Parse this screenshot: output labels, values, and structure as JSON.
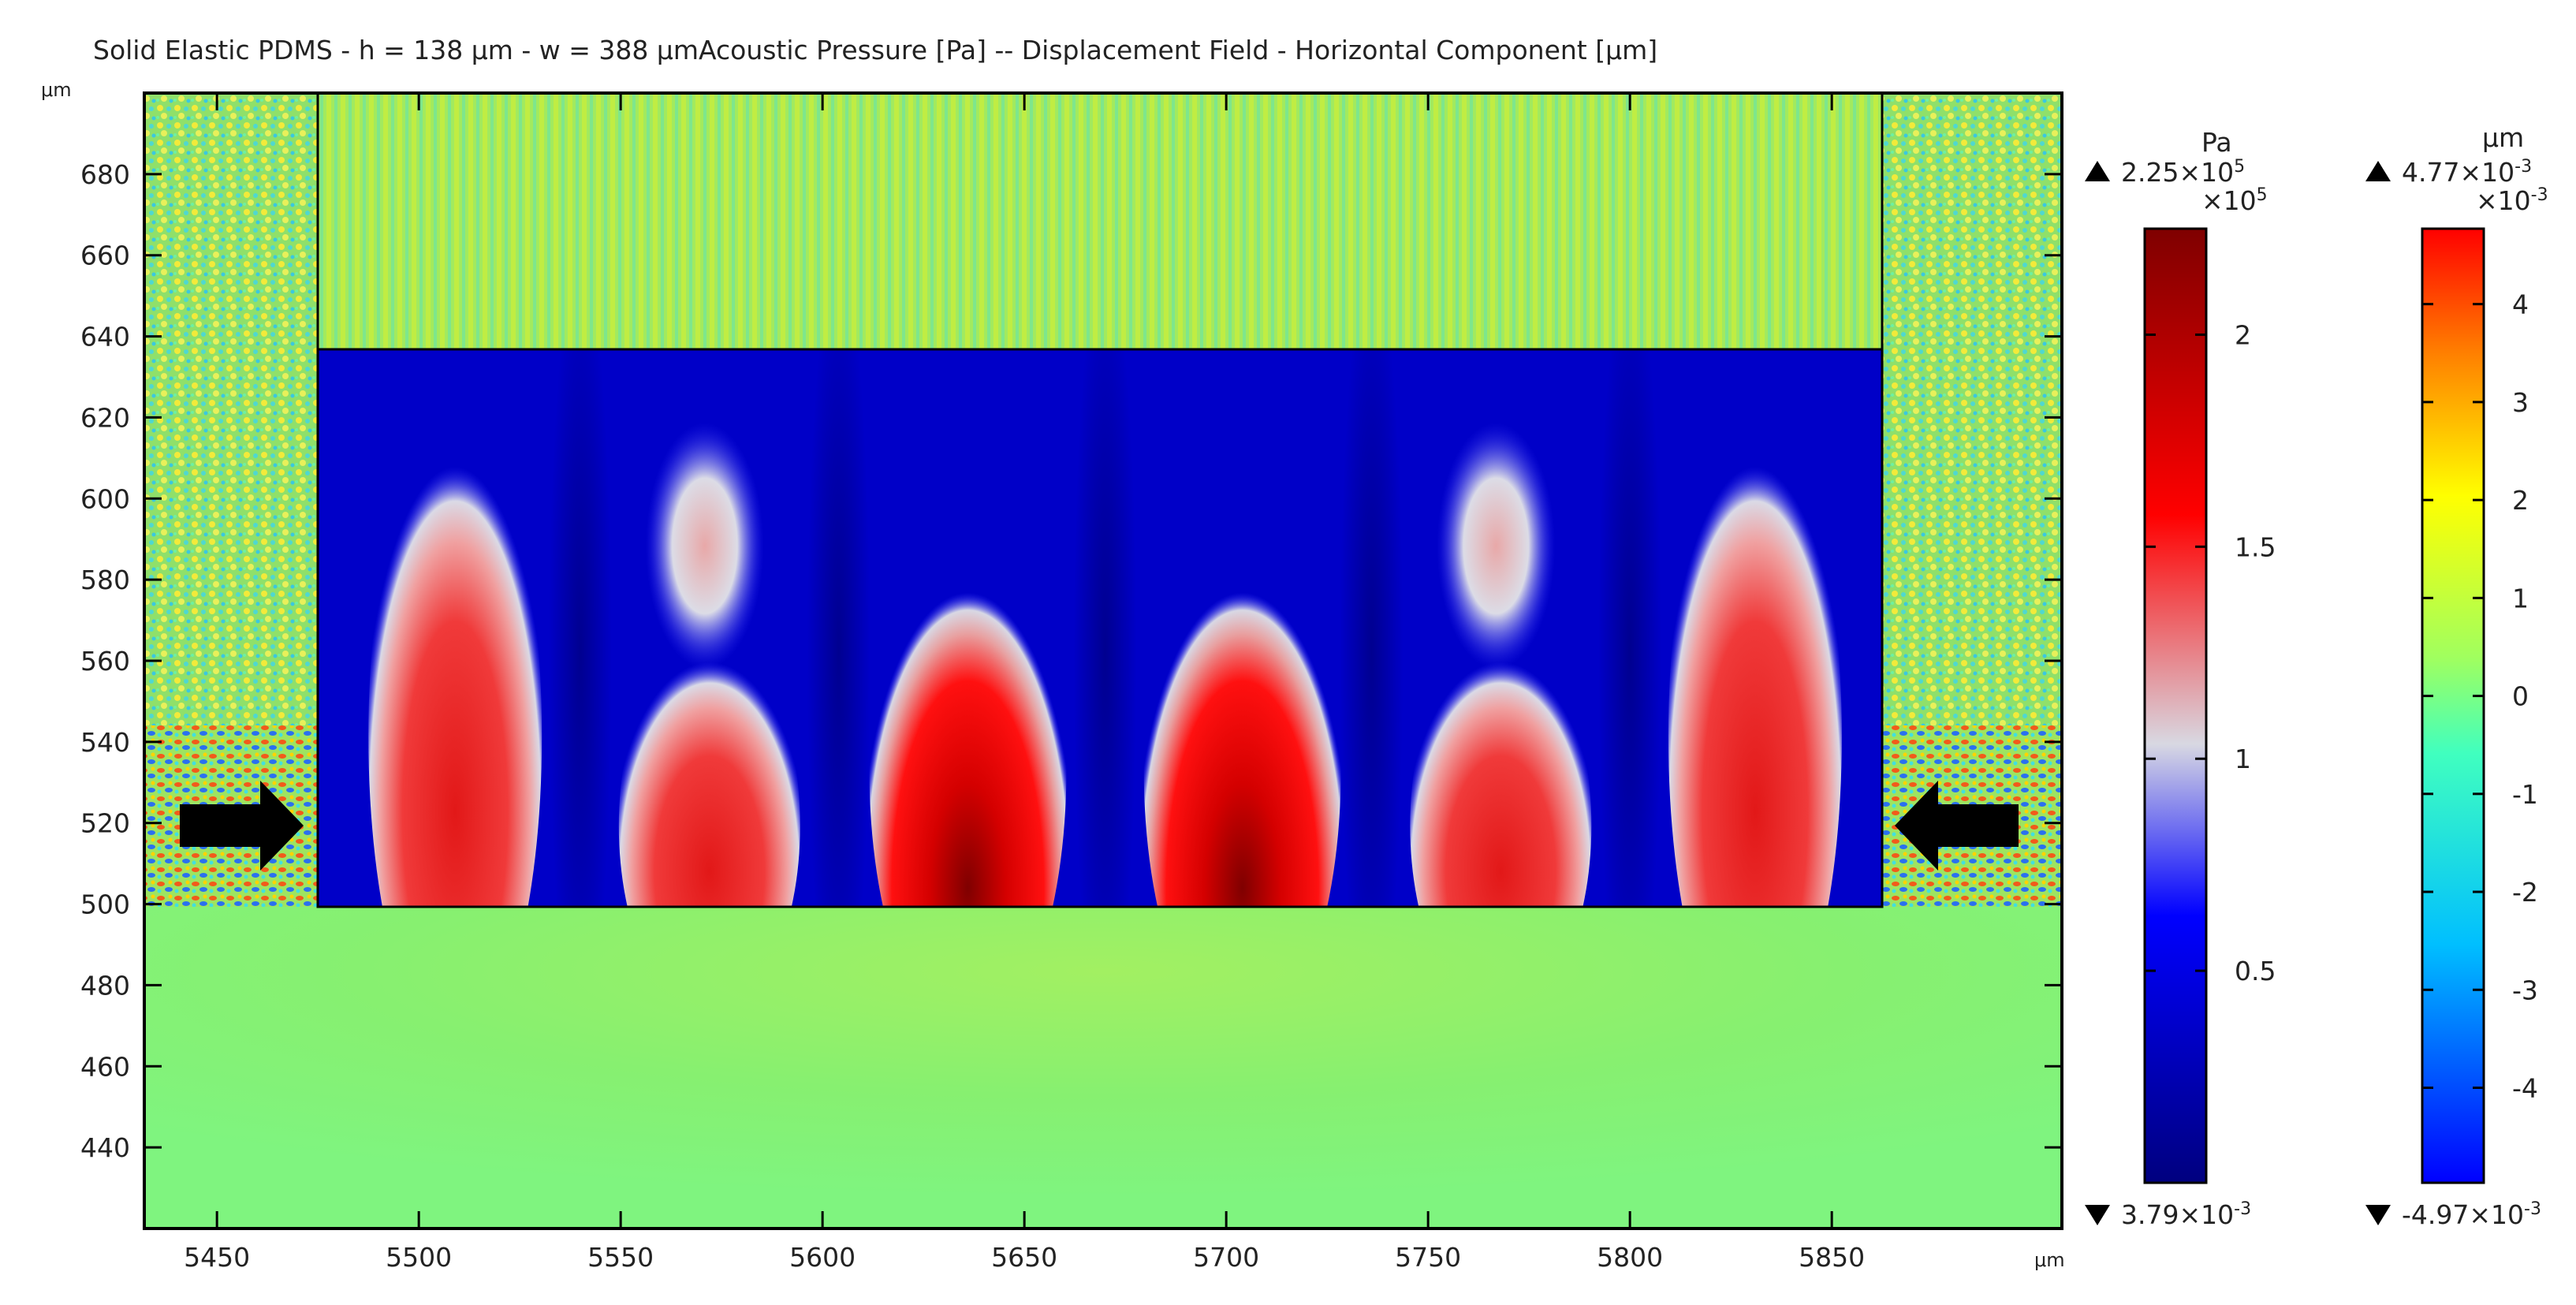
{
  "title": "Solid Elastic PDMS - h = 138 μm - w = 388 μmAcoustic Pressure [Pa] -- Displacement Field - Horizontal Component [μm]",
  "chart_data": {
    "type": "heatmap",
    "title": "Solid Elastic PDMS - h = 138 μm - w = 388 μmAcoustic Pressure [Pa] -- Displacement Field - Horizontal Component [μm]",
    "x_unit": "μm",
    "y_unit": "μm",
    "xlim": [
      5432,
      5907
    ],
    "ylim": [
      420,
      700
    ],
    "x_ticks": [
      5450,
      5500,
      5550,
      5600,
      5650,
      5700,
      5750,
      5800,
      5850
    ],
    "y_ticks": [
      440,
      460,
      480,
      500,
      520,
      540,
      560,
      580,
      600,
      620,
      640,
      660,
      680
    ],
    "channel": {
      "x_left": 5476,
      "x_right": 5864,
      "y_bottom": 500,
      "y_top": 638
    },
    "pressure_lobes": [
      {
        "x": 5509,
        "y_peak": 540,
        "relative": 0.62
      },
      {
        "x": 5572,
        "y_peak": 520,
        "relative": 0.75
      },
      {
        "x": 5636,
        "y_peak": 520,
        "relative": 1.0
      },
      {
        "x": 5704,
        "y_peak": 520,
        "relative": 1.0
      },
      {
        "x": 5768,
        "y_peak": 520,
        "relative": 0.75
      },
      {
        "x": 5831,
        "y_peak": 540,
        "relative": 0.62
      }
    ],
    "arrows": [
      {
        "direction": "right",
        "x": 5465,
        "y": 519
      },
      {
        "direction": "left",
        "x": 5876,
        "y": 519
      }
    ],
    "colorbars": [
      {
        "name": "Acoustic Pressure",
        "unit": "Pa",
        "max_label": "2.25×10",
        "max_exp": "5",
        "min_label": "3.79×10",
        "min_exp": "-3",
        "multiplier": "×10",
        "multiplier_exp": "5",
        "max": 2.25,
        "min": 0.0,
        "ticks": [
          "2",
          "1.5",
          "1",
          "0.5"
        ],
        "tick_values": [
          2,
          1.5,
          1,
          0.5
        ],
        "colormap": [
          "#00007f",
          "#0000ff",
          "#c8c8dc",
          "#ff0000",
          "#7f0000"
        ]
      },
      {
        "name": "Displacement Field - Horizontal Component",
        "unit": "μm",
        "max_label": "4.77×10",
        "max_exp": "-3",
        "min_label": "-4.97×10",
        "min_exp": "-3",
        "multiplier": "×10",
        "multiplier_exp": "-3",
        "max": 4.77,
        "min": -4.97,
        "ticks": [
          "4",
          "3",
          "2",
          "1",
          "0",
          "-1",
          "-2",
          "-3",
          "-4"
        ],
        "tick_values": [
          4,
          3,
          2,
          1,
          0,
          -1,
          -2,
          -3,
          -4
        ],
        "colormap": [
          "#0000ff",
          "#00ffff",
          "#80ff80",
          "#ffff00",
          "#ff0000"
        ]
      }
    ],
    "colors": {
      "solid": "#7ff47f",
      "solid_center": "#95f064",
      "water_bg": "#8fe66a"
    }
  }
}
